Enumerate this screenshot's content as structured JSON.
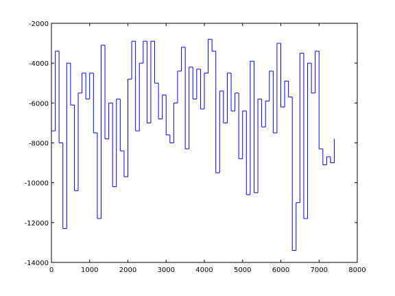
{
  "chart_data": {
    "type": "stairs",
    "color": "#0000ff",
    "x": [
      0,
      100,
      200,
      300,
      400,
      500,
      600,
      700,
      800,
      900,
      1000,
      1100,
      1200,
      1300,
      1400,
      1500,
      1600,
      1700,
      1800,
      1900,
      2000,
      2100,
      2200,
      2300,
      2400,
      2500,
      2600,
      2700,
      2800,
      2900,
      3000,
      3100,
      3200,
      3300,
      3400,
      3500,
      3600,
      3700,
      3800,
      3900,
      4000,
      4100,
      4200,
      4300,
      4400,
      4500,
      4600,
      4700,
      4800,
      4900,
      5000,
      5100,
      5200,
      5300,
      5400,
      5500,
      5600,
      5700,
      5800,
      5900,
      6000,
      6100,
      6200,
      6300,
      6400,
      6500,
      6600,
      6700,
      6800,
      6900,
      7000,
      7100,
      7200,
      7300,
      7400
    ],
    "values": [
      -7400,
      -3400,
      -8000,
      -12300,
      -4000,
      -6100,
      -10400,
      -5500,
      -4500,
      -5800,
      -4500,
      -7500,
      -11800,
      -3100,
      -7800,
      -6000,
      -10200,
      -5800,
      -8400,
      -9700,
      -4800,
      -2900,
      -7400,
      -4000,
      -2900,
      -7000,
      -2900,
      -5000,
      -6800,
      -5600,
      -7600,
      -8000,
      -6000,
      -4400,
      -3200,
      -8300,
      -4200,
      -5800,
      -4300,
      -6300,
      -4500,
      -2800,
      -3400,
      -9500,
      -5400,
      -7000,
      -4500,
      -6400,
      -5500,
      -8800,
      -6400,
      -10600,
      -3900,
      -10500,
      -5800,
      -7200,
      -5900,
      -4400,
      -7500,
      -3000,
      -6200,
      -4900,
      -5700,
      -13400,
      -11000,
      -3500,
      -11800,
      -4000,
      -5500,
      -3400,
      -8300,
      -9100,
      -8700,
      -9000,
      -7800
    ],
    "xlim": [
      0,
      8000
    ],
    "xticks": [
      0,
      1000,
      2000,
      3000,
      4000,
      5000,
      6000,
      7000,
      8000
    ],
    "ylim": [
      -14000,
      -2000
    ],
    "yticks": [
      -14000,
      -12000,
      -10000,
      -8000,
      -6000,
      -4000,
      -2000
    ]
  }
}
